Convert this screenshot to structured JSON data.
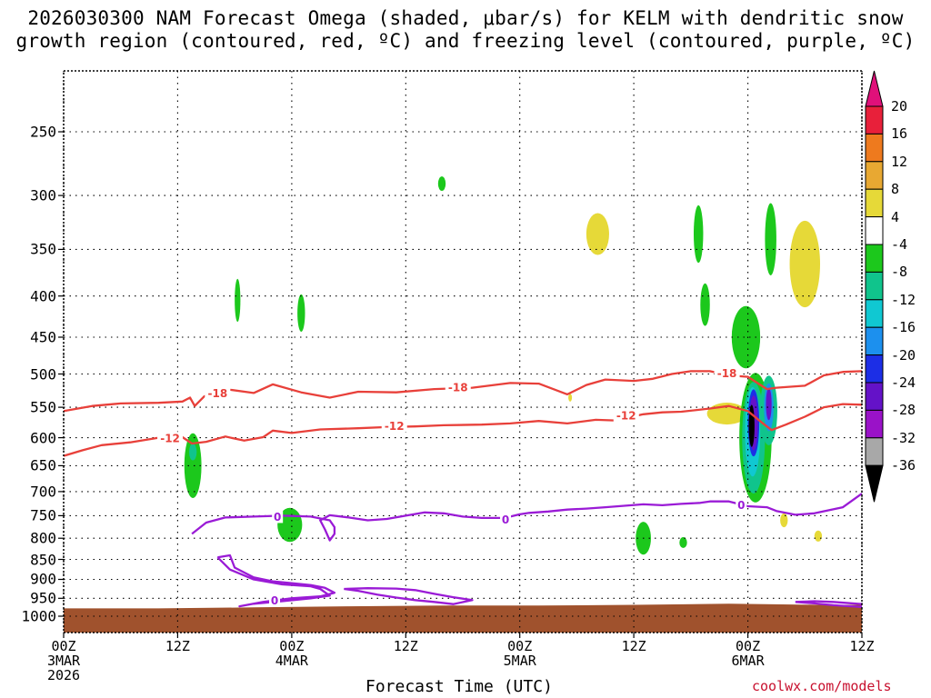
{
  "colors": {
    "freezing_level": "#9a1bd6",
    "dgz": "#e8403a",
    "ground": "#a0522d",
    "credit": "#c8102e"
  },
  "chart_data": {
    "type": "heatmap",
    "title_line1": "2026030300 NAM Forecast Omega (shaded, μbar/s) for KELM with dendritic snow",
    "title_line2": "growth region (contoured, red, ºC) and freezing level (contoured, purple, ºC)",
    "xlabel": "Forecast Time (UTC)",
    "ylabel": "",
    "credit": "coolwx.com/models",
    "x_range_hours": [
      0,
      84
    ],
    "x_ticks": [
      {
        "h": 0,
        "label": "00Z\n3MAR\n2026"
      },
      {
        "h": 12,
        "label": "12Z"
      },
      {
        "h": 24,
        "label": "00Z\n4MAR"
      },
      {
        "h": 36,
        "label": "12Z"
      },
      {
        "h": 48,
        "label": "00Z\n5MAR"
      },
      {
        "h": 60,
        "label": "12Z"
      },
      {
        "h": 72,
        "label": "00Z\n6MAR"
      },
      {
        "h": 84,
        "label": "12Z"
      }
    ],
    "y_ticks": [
      250,
      300,
      350,
      400,
      450,
      500,
      550,
      600,
      650,
      700,
      750,
      800,
      850,
      900,
      950,
      1000
    ],
    "y_range_hpa": [
      200,
      1025
    ],
    "colorbar": {
      "labels": [
        "20",
        "16",
        "12",
        "8",
        "4",
        "-4",
        "-8",
        "-12",
        "-16",
        "-20",
        "-24",
        "-28",
        "-32",
        "-36"
      ],
      "bins": [
        {
          "lo": 16,
          "hi": 20,
          "color": "#e8203a"
        },
        {
          "lo": 12,
          "hi": 16,
          "color": "#ee7a1e"
        },
        {
          "lo": 8,
          "hi": 12,
          "color": "#e8a832"
        },
        {
          "lo": 4,
          "hi": 8,
          "color": "#e6d938"
        },
        {
          "lo": -4,
          "hi": 4,
          "color": "#ffffff"
        },
        {
          "lo": -8,
          "hi": -4,
          "color": "#1cc81c"
        },
        {
          "lo": -12,
          "hi": -8,
          "color": "#10c48c"
        },
        {
          "lo": -16,
          "hi": -12,
          "color": "#10c8d2"
        },
        {
          "lo": -20,
          "hi": -16,
          "color": "#1c90ee"
        },
        {
          "lo": -24,
          "hi": -20,
          "color": "#1c2ee6"
        },
        {
          "lo": -28,
          "hi": -24,
          "color": "#6412c8"
        },
        {
          "lo": -32,
          "hi": -28,
          "color": "#9a12c8"
        },
        {
          "lo": -36,
          "hi": -32,
          "color": "#a8a8a8"
        }
      ],
      "top_arrow_color": "#e0107a",
      "bottom_arrow_color": "#000000"
    },
    "omega_regions": [
      {
        "h": 13.6,
        "p": 650,
        "dh": 0.9,
        "dp": 120,
        "value": -6
      },
      {
        "h": 13.6,
        "p": 625,
        "dh": 0.4,
        "dp": 30,
        "value": -10
      },
      {
        "h": 18.3,
        "p": 405,
        "dh": 0.3,
        "dp": 50,
        "value": -6
      },
      {
        "h": 25.0,
        "p": 420,
        "dh": 0.4,
        "dp": 45,
        "value": -6
      },
      {
        "h": 23.8,
        "p": 770,
        "dh": 1.3,
        "dp": 75,
        "value": -6
      },
      {
        "h": 39.8,
        "p": 290,
        "dh": 0.4,
        "dp": 12,
        "value": -6
      },
      {
        "h": 56.2,
        "p": 335,
        "dh": 1.2,
        "dp": 40,
        "value": 6
      },
      {
        "h": 53.3,
        "p": 535,
        "dh": 0.15,
        "dp": 12,
        "value": 6
      },
      {
        "h": 61.0,
        "p": 800,
        "dh": 0.8,
        "dp": 75,
        "value": -6
      },
      {
        "h": 65.2,
        "p": 810,
        "dh": 0.4,
        "dp": 25,
        "value": -6
      },
      {
        "h": 66.8,
        "p": 335,
        "dh": 0.5,
        "dp": 55,
        "value": -6
      },
      {
        "h": 67.5,
        "p": 410,
        "dh": 0.5,
        "dp": 50,
        "value": -6
      },
      {
        "h": 69.8,
        "p": 560,
        "dh": 2.1,
        "dp": 35,
        "value": 6
      },
      {
        "h": 71.8,
        "p": 450,
        "dh": 1.5,
        "dp": 80,
        "value": -6
      },
      {
        "h": 74.4,
        "p": 340,
        "dh": 0.6,
        "dp": 70,
        "value": -6
      },
      {
        "h": 78.0,
        "p": 365,
        "dh": 1.6,
        "dp": 90,
        "value": 6
      },
      {
        "h": 75.8,
        "p": 760,
        "dh": 0.4,
        "dp": 30,
        "value": 6
      },
      {
        "h": 79.4,
        "p": 795,
        "dh": 0.4,
        "dp": 25,
        "value": 6
      },
      {
        "h": 72.8,
        "p": 600,
        "dh": 1.7,
        "dp": 220,
        "value": -6
      },
      {
        "h": 72.6,
        "p": 600,
        "dh": 1.2,
        "dp": 190,
        "value": -10
      },
      {
        "h": 72.5,
        "p": 590,
        "dh": 0.8,
        "dp": 150,
        "value": -14
      },
      {
        "h": 72.6,
        "p": 575,
        "dh": 0.6,
        "dp": 110,
        "value": -22
      },
      {
        "h": 72.6,
        "p": 575,
        "dh": 0.45,
        "dp": 90,
        "value": -26
      },
      {
        "h": 72.4,
        "p": 580,
        "dh": 0.3,
        "dp": 70,
        "value": -40
      },
      {
        "h": 74.2,
        "p": 555,
        "dh": 0.9,
        "dp": 110,
        "value": -10
      },
      {
        "h": 74.2,
        "p": 550,
        "dh": 0.5,
        "dp": 75,
        "value": -18
      },
      {
        "h": 74.2,
        "p": 545,
        "dh": 0.3,
        "dp": 50,
        "value": -26
      }
    ],
    "contours": [
      {
        "name": "-18",
        "color": "#e8403a",
        "points": [
          [
            0,
            556
          ],
          [
            3,
            548
          ],
          [
            6,
            544
          ],
          [
            10,
            543
          ],
          [
            12.5,
            541
          ],
          [
            13.3,
            535
          ],
          [
            13.8,
            548
          ],
          [
            14.8,
            533
          ],
          [
            17,
            522
          ],
          [
            20,
            528
          ],
          [
            22,
            515
          ],
          [
            25,
            527
          ],
          [
            28,
            535
          ],
          [
            31,
            526
          ],
          [
            35,
            527
          ],
          [
            39,
            522
          ],
          [
            43,
            520
          ],
          [
            47,
            513
          ],
          [
            50,
            514
          ],
          [
            53,
            530
          ],
          [
            55,
            516
          ],
          [
            57,
            508
          ],
          [
            60,
            510
          ],
          [
            62,
            507
          ],
          [
            64,
            500
          ],
          [
            66,
            496
          ],
          [
            68,
            496
          ],
          [
            70,
            502
          ],
          [
            72,
            504
          ],
          [
            74,
            522
          ],
          [
            75,
            520
          ],
          [
            78,
            517
          ],
          [
            80,
            502
          ],
          [
            82,
            497
          ],
          [
            84,
            496
          ]
        ],
        "labels": [
          {
            "h": 16.2,
            "p": 528,
            "text": "-18"
          },
          {
            "h": 41.5,
            "p": 519,
            "text": "-18"
          },
          {
            "h": 69.8,
            "p": 499,
            "text": "-18"
          }
        ]
      },
      {
        "name": "-12",
        "color": "#e8403a",
        "points": [
          [
            0,
            632
          ],
          [
            2,
            622
          ],
          [
            4,
            613
          ],
          [
            7,
            608
          ],
          [
            10,
            600
          ],
          [
            12.5,
            599
          ],
          [
            13.5,
            610
          ],
          [
            15,
            607
          ],
          [
            17,
            598
          ],
          [
            19,
            605
          ],
          [
            21,
            599
          ],
          [
            22,
            588
          ],
          [
            24,
            592
          ],
          [
            27,
            586
          ],
          [
            31,
            584
          ],
          [
            34,
            582
          ],
          [
            37,
            581
          ],
          [
            40,
            579
          ],
          [
            44,
            578
          ],
          [
            47,
            576
          ],
          [
            50,
            572
          ],
          [
            53,
            576
          ],
          [
            56,
            570
          ],
          [
            58,
            571
          ],
          [
            61,
            561
          ],
          [
            63,
            558
          ],
          [
            65,
            557
          ],
          [
            68,
            552
          ],
          [
            70,
            548
          ],
          [
            72,
            556
          ],
          [
            73.5,
            575
          ],
          [
            74.5,
            587
          ],
          [
            76,
            578
          ],
          [
            78,
            565
          ],
          [
            80,
            550
          ],
          [
            82,
            545
          ],
          [
            84,
            546
          ]
        ],
        "labels": [
          {
            "h": 11.2,
            "p": 601,
            "text": "-12"
          },
          {
            "h": 34.8,
            "p": 580,
            "text": "-12"
          },
          {
            "h": 59.2,
            "p": 563,
            "text": "-12"
          }
        ]
      },
      {
        "name": "0 main",
        "color": "#9a1bd6",
        "points": [
          [
            13.5,
            790
          ],
          [
            15,
            765
          ],
          [
            17,
            754
          ],
          [
            20,
            752
          ],
          [
            23,
            750
          ],
          [
            26,
            752
          ],
          [
            28,
            760
          ],
          [
            28.5,
            775
          ],
          [
            28.5,
            790
          ],
          [
            28,
            805
          ],
          [
            27.5,
            780
          ],
          [
            27,
            760
          ],
          [
            28,
            749
          ],
          [
            30,
            754
          ],
          [
            32,
            760
          ],
          [
            34,
            757
          ],
          [
            36,
            750
          ],
          [
            38,
            743
          ],
          [
            40,
            745
          ],
          [
            42,
            752
          ],
          [
            44,
            755
          ],
          [
            46,
            755
          ],
          [
            47,
            752
          ],
          [
            48,
            747
          ],
          [
            49,
            744
          ],
          [
            51,
            741
          ],
          [
            53,
            737
          ],
          [
            55,
            735
          ],
          [
            57,
            732
          ],
          [
            59,
            729
          ],
          [
            61,
            726
          ],
          [
            63,
            728
          ],
          [
            65,
            725
          ],
          [
            67,
            723
          ],
          [
            68,
            720
          ],
          [
            70,
            720
          ],
          [
            71,
            725
          ],
          [
            72,
            730
          ],
          [
            74,
            732
          ],
          [
            75,
            740
          ],
          [
            77,
            748
          ],
          [
            79,
            745
          ],
          [
            82,
            732
          ],
          [
            84,
            704
          ]
        ],
        "labels": [
          {
            "h": 22.5,
            "p": 752,
            "text": "0"
          },
          {
            "h": 46.5,
            "p": 758,
            "text": "0"
          },
          {
            "h": 71.3,
            "p": 727,
            "text": "0"
          }
        ]
      },
      {
        "name": "0 lower loop",
        "color": "#9a1bd6",
        "points": [
          [
            16.2,
            845
          ],
          [
            17.5,
            840
          ],
          [
            18,
            870
          ],
          [
            20,
            895
          ],
          [
            22,
            905
          ],
          [
            24,
            910
          ],
          [
            26,
            915
          ],
          [
            27.5,
            922
          ],
          [
            28.5,
            935
          ],
          [
            27,
            945
          ],
          [
            24,
            950
          ],
          [
            21,
            960
          ],
          [
            18.5,
            972
          ],
          [
            20,
            965
          ],
          [
            23,
            958
          ],
          [
            26,
            950
          ],
          [
            28,
            943
          ],
          [
            27,
            925
          ],
          [
            26,
            918
          ],
          [
            23,
            913
          ],
          [
            20,
            900
          ],
          [
            17.5,
            875
          ],
          [
            16.2,
            845
          ]
        ],
        "labels": [
          {
            "h": 22.2,
            "p": 956,
            "text": "0"
          }
        ]
      },
      {
        "name": "0 surface loop",
        "color": "#9a1bd6",
        "points": [
          [
            29.5,
            925
          ],
          [
            32,
            923
          ],
          [
            35,
            924
          ],
          [
            37,
            928
          ],
          [
            39,
            938
          ],
          [
            41,
            947
          ],
          [
            43,
            955
          ],
          [
            41,
            966
          ],
          [
            39,
            960
          ],
          [
            37,
            955
          ],
          [
            35,
            948
          ],
          [
            33,
            940
          ],
          [
            31,
            930
          ],
          [
            29.5,
            925
          ]
        ],
        "labels": []
      },
      {
        "name": "0 right edge",
        "color": "#9a1bd6",
        "points": [
          [
            77,
            960
          ],
          [
            79,
            958
          ],
          [
            81,
            960
          ],
          [
            84,
            966
          ],
          [
            84,
            974
          ],
          [
            81,
            969
          ],
          [
            79,
            964
          ],
          [
            77,
            960
          ]
        ],
        "labels": []
      }
    ],
    "ground": {
      "color": "#a0522d",
      "top_p": [
        [
          0,
          978
        ],
        [
          10,
          978
        ],
        [
          20,
          975
        ],
        [
          30,
          972
        ],
        [
          40,
          970
        ],
        [
          50,
          970
        ],
        [
          60,
          968
        ],
        [
          70,
          965
        ],
        [
          80,
          968
        ],
        [
          84,
          968
        ]
      ]
    }
  }
}
